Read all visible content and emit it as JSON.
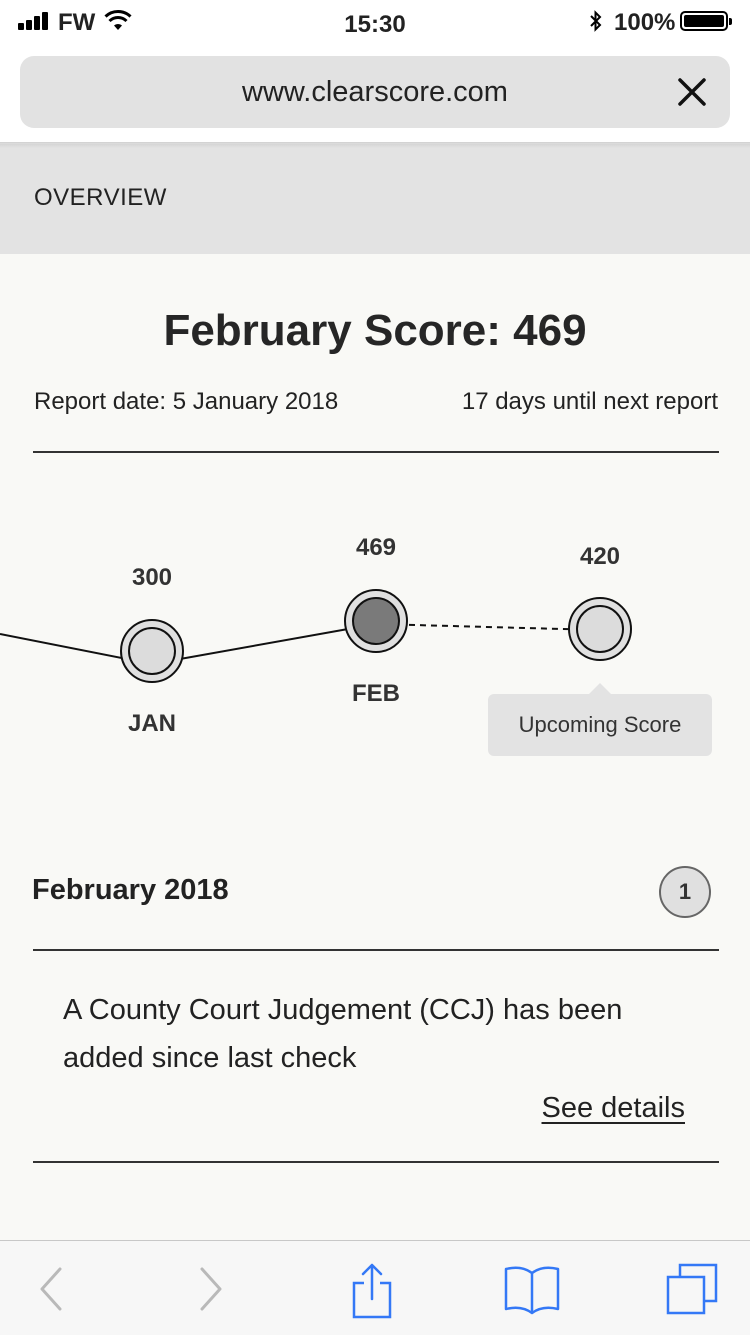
{
  "status_bar": {
    "carrier": "FW",
    "time": "15:30",
    "battery": "100%"
  },
  "browser": {
    "url": "www.clearscore.com"
  },
  "page": {
    "section_label": "OVERVIEW",
    "score_title": "February Score: 469",
    "report_date": "Report date: 5 January 2018",
    "next_report": "17 days until next report"
  },
  "timeline": {
    "points": [
      {
        "month": "JAN",
        "score": "300"
      },
      {
        "month": "FEB",
        "score": "469"
      },
      {
        "month": "",
        "score": "420"
      }
    ],
    "tooltip": "Upcoming Score"
  },
  "alerts": {
    "heading": "February 2018",
    "count": "1",
    "message": "A County Court Judgement  (CCJ) has been added since last check",
    "link_label": "See details"
  },
  "toolbar": {
    "icons": [
      "back-icon",
      "forward-icon",
      "share-icon",
      "bookmarks-icon",
      "tabs-icon"
    ]
  },
  "colors": {
    "accent": "#3478f6",
    "page_background": "#f9f9f6",
    "header_background": "#e3e3e3"
  }
}
